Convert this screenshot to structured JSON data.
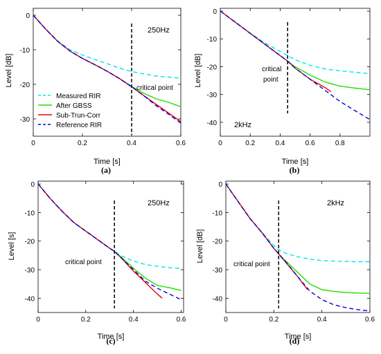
{
  "legend": {
    "position": "lower-left of panel (a)",
    "entries": [
      {
        "name": "Measured RIR",
        "color": "#00e5ee",
        "dash": "6,4"
      },
      {
        "name": "After GBSS",
        "color": "#22dd00",
        "dash": ""
      },
      {
        "name": "Sub-Trun-Corr",
        "color": "#ee0000",
        "dash": ""
      },
      {
        "name": "Reference RIR",
        "color": "#0000dd",
        "dash": "6,4"
      }
    ]
  },
  "chart_data": [
    {
      "type": "line",
      "caption": "(a)",
      "freq_label": "250Hz",
      "annotation": "critical point",
      "critical_time": 0.4,
      "xlabel": "Time [s]",
      "ylabel": "Level [dB]",
      "xlim": [
        0,
        0.6
      ],
      "ylim": [
        -35,
        2
      ],
      "xticks": [
        0,
        0.2,
        0.4,
        0.6
      ],
      "yticks": [
        0,
        -10,
        -20,
        -30
      ],
      "series": [
        {
          "name": "Measured RIR",
          "x": [
            0,
            0.05,
            0.1,
            0.15,
            0.2,
            0.25,
            0.3,
            0.35,
            0.4,
            0.45,
            0.5,
            0.55,
            0.6
          ],
          "y": [
            0,
            -4,
            -7.5,
            -10,
            -11.5,
            -12.8,
            -14,
            -15.3,
            -16.3,
            -17,
            -17.6,
            -17.9,
            -18.2
          ]
        },
        {
          "name": "After GBSS",
          "x": [
            0,
            0.05,
            0.1,
            0.15,
            0.2,
            0.25,
            0.3,
            0.35,
            0.4,
            0.45,
            0.5,
            0.55,
            0.6
          ],
          "y": [
            0,
            -4,
            -7.6,
            -10.4,
            -12.5,
            -14.3,
            -16.2,
            -18.3,
            -20.6,
            -22.6,
            -24.2,
            -25.2,
            -26.5
          ]
        },
        {
          "name": "Sub-Trun-Corr",
          "x": [
            0,
            0.05,
            0.1,
            0.15,
            0.2,
            0.25,
            0.3,
            0.35,
            0.4,
            0.45,
            0.5,
            0.55,
            0.6
          ],
          "y": [
            0,
            -4,
            -7.6,
            -10.4,
            -12.5,
            -14.3,
            -16.2,
            -18.3,
            -20.7,
            -23.3,
            -25.8,
            -28.3,
            -30.8
          ]
        },
        {
          "name": "Reference RIR",
          "x": [
            0,
            0.05,
            0.1,
            0.15,
            0.2,
            0.25,
            0.3,
            0.35,
            0.4,
            0.45,
            0.5,
            0.55,
            0.6
          ],
          "y": [
            0,
            -4,
            -7.6,
            -10.4,
            -12.5,
            -14.3,
            -16.2,
            -18.3,
            -20.7,
            -23.3,
            -26.2,
            -28.6,
            -31.2
          ]
        }
      ]
    },
    {
      "type": "line",
      "caption": "(b)",
      "freq_label": "2kHz",
      "annotation": "critical point",
      "critical_time": 0.45,
      "xlabel": "Time [s]",
      "ylabel": "Level [dB]",
      "xlim": [
        0,
        1.0
      ],
      "ylim": [
        -45,
        1
      ],
      "xticks": [
        0,
        0.2,
        0.4,
        0.6,
        0.8
      ],
      "yticks": [
        0,
        -10,
        -20,
        -30,
        -40
      ],
      "series": [
        {
          "name": "Measured RIR",
          "x": [
            0,
            0.1,
            0.2,
            0.3,
            0.4,
            0.45,
            0.5,
            0.6,
            0.7,
            0.8,
            0.9,
            1.0
          ],
          "y": [
            0,
            -4,
            -8,
            -11.5,
            -14.5,
            -16,
            -17.5,
            -19.5,
            -20.8,
            -21.5,
            -22,
            -22.5
          ]
        },
        {
          "name": "After GBSS",
          "x": [
            0,
            0.1,
            0.2,
            0.3,
            0.4,
            0.45,
            0.5,
            0.6,
            0.7,
            0.8,
            0.9,
            1.0
          ],
          "y": [
            0,
            -4,
            -8,
            -12,
            -16,
            -18,
            -20,
            -23,
            -25.5,
            -27,
            -27.7,
            -28.3
          ]
        },
        {
          "name": "Sub-Trun-Corr",
          "x": [
            0,
            0.1,
            0.2,
            0.3,
            0.4,
            0.45,
            0.5,
            0.6,
            0.7,
            0.74
          ],
          "y": [
            0,
            -4,
            -8,
            -12,
            -16,
            -18,
            -20.5,
            -24.5,
            -27.5,
            -29
          ]
        },
        {
          "name": "Reference RIR",
          "x": [
            0,
            0.1,
            0.2,
            0.3,
            0.4,
            0.45,
            0.5,
            0.6,
            0.7,
            0.8,
            0.9,
            1.0
          ],
          "y": [
            0,
            -4,
            -8,
            -12,
            -16,
            -18,
            -20.5,
            -24.5,
            -28.5,
            -32.5,
            -35.8,
            -39
          ]
        }
      ]
    },
    {
      "type": "line",
      "caption": "(c)",
      "freq_label": "250Hz",
      "annotation": "critical point",
      "critical_time": 0.32,
      "xlabel": "Time [s]",
      "ylabel": "Level [s]",
      "xlim": [
        0,
        0.61
      ],
      "ylim": [
        -45,
        1
      ],
      "xticks": [
        0,
        0.2,
        0.4,
        0.6
      ],
      "yticks": [
        0,
        -10,
        -20,
        -30,
        -40
      ],
      "series": [
        {
          "name": "Measured RIR",
          "x": [
            0,
            0.05,
            0.1,
            0.15,
            0.2,
            0.25,
            0.3,
            0.32,
            0.35,
            0.4,
            0.45,
            0.5,
            0.55,
            0.6
          ],
          "y": [
            0,
            -5,
            -9.5,
            -13.5,
            -16.5,
            -19.5,
            -22.5,
            -23.5,
            -25.2,
            -27,
            -28.2,
            -28.8,
            -29.3,
            -29.5
          ]
        },
        {
          "name": "After GBSS",
          "x": [
            0,
            0.05,
            0.1,
            0.15,
            0.2,
            0.25,
            0.3,
            0.32,
            0.35,
            0.4,
            0.45,
            0.5,
            0.55,
            0.6
          ],
          "y": [
            0,
            -5,
            -9.5,
            -13.5,
            -16.5,
            -19.5,
            -22.5,
            -23.6,
            -25.7,
            -29.5,
            -33,
            -35.5,
            -36.3,
            -37.3
          ]
        },
        {
          "name": "Sub-Trun-Corr",
          "x": [
            0,
            0.05,
            0.1,
            0.15,
            0.2,
            0.25,
            0.3,
            0.32,
            0.35,
            0.4,
            0.45,
            0.5,
            0.52
          ],
          "y": [
            0,
            -5,
            -9.5,
            -13.5,
            -16.5,
            -19.5,
            -22.5,
            -23.6,
            -26,
            -30.5,
            -34.5,
            -38.5,
            -40
          ]
        },
        {
          "name": "Reference RIR",
          "x": [
            0,
            0.05,
            0.1,
            0.15,
            0.2,
            0.25,
            0.3,
            0.32,
            0.35,
            0.4,
            0.45,
            0.5,
            0.55,
            0.6
          ],
          "y": [
            0,
            -5,
            -9.5,
            -13.5,
            -16.5,
            -19.5,
            -22.5,
            -23.6,
            -26,
            -30,
            -34,
            -36.5,
            -38.5,
            -40.5
          ]
        }
      ]
    },
    {
      "type": "line",
      "caption": "(d)",
      "freq_label": "2kHz",
      "annotation": "critical point",
      "critical_time": 0.22,
      "xlabel": "Time [s]",
      "ylabel": "Level [dB]",
      "xlim": [
        0,
        0.6
      ],
      "ylim": [
        -45,
        1
      ],
      "xticks": [
        0,
        0.2,
        0.4,
        0.6
      ],
      "yticks": [
        0,
        -10,
        -20,
        -30,
        -40
      ],
      "series": [
        {
          "name": "Measured RIR",
          "x": [
            0,
            0.05,
            0.1,
            0.15,
            0.2,
            0.22,
            0.25,
            0.3,
            0.35,
            0.4,
            0.45,
            0.5,
            0.55,
            0.6
          ],
          "y": [
            0,
            -6,
            -12,
            -17,
            -21.5,
            -23,
            -24.3,
            -25.5,
            -26.3,
            -26.8,
            -27,
            -27.1,
            -27.2,
            -27.2
          ]
        },
        {
          "name": "After GBSS",
          "x": [
            0,
            0.05,
            0.1,
            0.15,
            0.2,
            0.22,
            0.25,
            0.3,
            0.35,
            0.4,
            0.45,
            0.5,
            0.55,
            0.6
          ],
          "y": [
            0,
            -6,
            -12,
            -17,
            -22.5,
            -24.5,
            -27,
            -31,
            -35,
            -37,
            -37.6,
            -38,
            -38.2,
            -38.3
          ]
        },
        {
          "name": "Sub-Trun-Corr",
          "x": [
            0,
            0.05,
            0.1,
            0.15,
            0.2,
            0.22,
            0.25,
            0.3,
            0.34
          ],
          "y": [
            0,
            -6,
            -12,
            -17,
            -22.5,
            -24.5,
            -27.5,
            -32.5,
            -37
          ]
        },
        {
          "name": "Reference RIR",
          "x": [
            0,
            0.05,
            0.1,
            0.15,
            0.2,
            0.22,
            0.25,
            0.3,
            0.35,
            0.4,
            0.45,
            0.5,
            0.55,
            0.6
          ],
          "y": [
            0,
            -6,
            -12,
            -17,
            -22.5,
            -24.5,
            -27.3,
            -32.5,
            -37.5,
            -40.5,
            -42.3,
            -43.3,
            -44,
            -44.5
          ]
        }
      ]
    }
  ]
}
